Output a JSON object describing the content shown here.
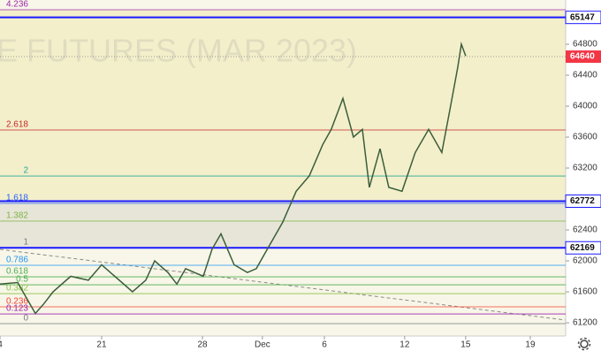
{
  "chart_data": {
    "type": "line",
    "watermark": "E FUTURES (MAR 2023)",
    "x": [
      0,
      0.87,
      1.74,
      2.17,
      2.61,
      3.48,
      4.35,
      5,
      5.65,
      6.52,
      7.17,
      7.61,
      8.26,
      8.7,
      9.13,
      10,
      10.43,
      10.87,
      11.52,
      12.17,
      12.61,
      13.04,
      13.91,
      14.57,
      15.22,
      15.87,
      16.3,
      16.87,
      17.39,
      17.83,
      18.17,
      18.7,
      19.13,
      19.78,
      20.43,
      21.09,
      21.74,
      22.17,
      22.52,
      22.7,
      22.91
    ],
    "values": [
      61700,
      61720,
      61320,
      61450,
      61600,
      61800,
      61750,
      61950,
      61800,
      61600,
      61750,
      62000,
      61850,
      61700,
      61900,
      61800,
      62150,
      62350,
      61950,
      61850,
      61900,
      62100,
      62500,
      62900,
      63100,
      63500,
      63700,
      64100,
      63600,
      63700,
      62950,
      63450,
      62950,
      62900,
      63400,
      63700,
      63400,
      64000,
      64500,
      64800,
      64650
    ],
    "color": "#3b5e3b",
    "xlim": [
      0,
      27.83
    ],
    "ylim": [
      61029,
      65372
    ],
    "xticks": [
      {
        "value": 0,
        "label": "4"
      },
      {
        "value": 5,
        "label": "21"
      },
      {
        "value": 9.96,
        "label": "28"
      },
      {
        "value": 12.91,
        "label": "Dec"
      },
      {
        "value": 15.96,
        "label": "6"
      },
      {
        "value": 19.91,
        "label": "12"
      },
      {
        "value": 22.91,
        "label": "15"
      },
      {
        "value": 26.09,
        "label": "19"
      }
    ],
    "yticks": [
      61200,
      61600,
      62000,
      62400,
      62800,
      63200,
      63600,
      64000,
      64400,
      64800
    ],
    "levels": [
      65147,
      62772,
      62169
    ],
    "level_color": "#1a1aff",
    "last_price": 64640,
    "last_price_color": "#f23645",
    "fib_levels": [
      {
        "value": 65246,
        "label": "4.236",
        "color": "#9c27b0"
      },
      {
        "value": 63692,
        "label": "2.618",
        "color": "#c62828"
      },
      {
        "value": 63097,
        "label": "2",
        "color": "#26a69a"
      },
      {
        "value": 62743,
        "label": "1.618",
        "color": "#2962ff"
      },
      {
        "value": 62515,
        "label": "1.382",
        "color": "#7cb342"
      },
      {
        "value": 62172,
        "label": "1",
        "color": "#787b86"
      },
      {
        "value": 61943,
        "label": "0.786",
        "color": "#2196f3"
      },
      {
        "value": 61794,
        "label": "0.618",
        "color": "#4caf50"
      },
      {
        "value": 61691,
        "label": "0.5",
        "color": "#4caf50"
      },
      {
        "value": 61577,
        "label": "0.382",
        "color": "#8bc34a"
      },
      {
        "value": 61406,
        "label": "0.236",
        "color": "#f44336"
      },
      {
        "value": 61314,
        "label": "0.123",
        "color": "#9c27b0"
      },
      {
        "value": 61189,
        "label": "0",
        "color": "#787b86"
      }
    ]
  }
}
